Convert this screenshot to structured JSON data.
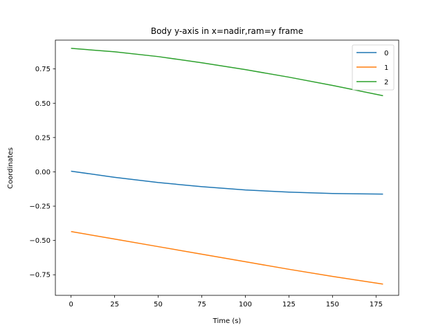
{
  "chart_data": {
    "type": "line",
    "title": "Body y-axis in x=nadir,ram=y frame",
    "xlabel": "Time (s)",
    "ylabel": "Coordinates",
    "xlim": [
      -9,
      188
    ],
    "ylim": [
      -0.9,
      0.96
    ],
    "xticks": [
      0,
      25,
      50,
      75,
      100,
      125,
      150,
      175
    ],
    "xtick_labels": [
      "0",
      "25",
      "50",
      "75",
      "100",
      "125",
      "150",
      "175"
    ],
    "yticks": [
      -0.75,
      -0.5,
      -0.25,
      0.0,
      0.25,
      0.5,
      0.75
    ],
    "ytick_labels": [
      "−0.75",
      "−0.50",
      "−0.25",
      "0.00",
      "0.25",
      "0.50",
      "0.75"
    ],
    "grid": false,
    "legend_position": "top-right",
    "x": [
      0,
      25,
      50,
      75,
      100,
      125,
      150,
      179
    ],
    "series": [
      {
        "name": "0",
        "color": "#1f77b4",
        "values": [
          0.005,
          -0.04,
          -0.078,
          -0.108,
          -0.132,
          -0.148,
          -0.158,
          -0.162
        ]
      },
      {
        "name": "1",
        "color": "#ff7f0e",
        "values": [
          -0.435,
          -0.49,
          -0.545,
          -0.6,
          -0.655,
          -0.71,
          -0.762,
          -0.818
        ]
      },
      {
        "name": "2",
        "color": "#2ca02c",
        "values": [
          0.9,
          0.875,
          0.84,
          0.795,
          0.745,
          0.69,
          0.63,
          0.555
        ]
      }
    ]
  }
}
